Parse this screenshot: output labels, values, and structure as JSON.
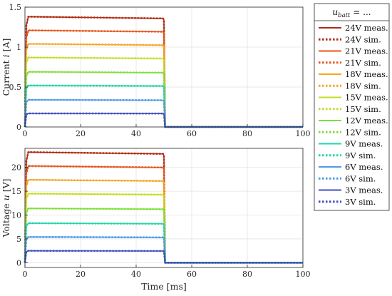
{
  "chart_data": [
    {
      "type": "line",
      "panel": "top",
      "ylabel": "Current i [A]",
      "xlabel": "",
      "xlim": [
        0,
        100
      ],
      "ylim": [
        0,
        1.5
      ],
      "xticks": [
        0,
        20,
        40,
        60,
        80,
        100
      ],
      "yticks": [
        0,
        0.5,
        1,
        1.5
      ],
      "grid": true,
      "pulse": {
        "start_ms": 0,
        "end_ms": 50
      },
      "series": [
        {
          "name": "24V meas.",
          "color": "#B22A12",
          "dash": false,
          "level": 1.38
        },
        {
          "name": "24V sim.",
          "color": "#B22A12",
          "dash": true,
          "level": 1.38
        },
        {
          "name": "21V meas.",
          "color": "#E8561B",
          "dash": false,
          "level": 1.21
        },
        {
          "name": "21V sim.",
          "color": "#E8561B",
          "dash": true,
          "level": 1.21
        },
        {
          "name": "18V meas.",
          "color": "#F5A623",
          "dash": false,
          "level": 1.04
        },
        {
          "name": "18V sim.",
          "color": "#F5A623",
          "dash": true,
          "level": 1.04
        },
        {
          "name": "15V meas.",
          "color": "#C6DC24",
          "dash": false,
          "level": 0.87
        },
        {
          "name": "15V sim.",
          "color": "#C6DC24",
          "dash": true,
          "level": 0.87
        },
        {
          "name": "12V meas.",
          "color": "#7EE03A",
          "dash": false,
          "level": 0.69
        },
        {
          "name": "12V sim.",
          "color": "#7EE03A",
          "dash": true,
          "level": 0.69
        },
        {
          "name": "9V meas.",
          "color": "#21D6A9",
          "dash": false,
          "level": 0.52
        },
        {
          "name": "9V sim.",
          "color": "#21D6A9",
          "dash": true,
          "level": 0.52
        },
        {
          "name": "6V meas.",
          "color": "#4C9BE8",
          "dash": false,
          "level": 0.34
        },
        {
          "name": "6V sim.",
          "color": "#4C9BE8",
          "dash": true,
          "level": 0.34
        },
        {
          "name": "3V meas.",
          "color": "#3E4FC2",
          "dash": false,
          "level": 0.17
        },
        {
          "name": "3V sim.",
          "color": "#3E4FC2",
          "dash": true,
          "level": 0.17
        }
      ]
    },
    {
      "type": "line",
      "panel": "bottom",
      "ylabel": "Voltage u [V]",
      "xlabel": "Time [ms]",
      "xlim": [
        0,
        100
      ],
      "ylim": [
        -1,
        24
      ],
      "xticks": [
        0,
        20,
        40,
        60,
        80,
        100
      ],
      "yticks": [
        0,
        5,
        10,
        15,
        20
      ],
      "grid": true,
      "pulse": {
        "start_ms": 0,
        "end_ms": 50
      },
      "series": [
        {
          "name": "24V meas.",
          "color": "#B22A12",
          "dash": false,
          "level": 23.2
        },
        {
          "name": "24V sim.",
          "color": "#B22A12",
          "dash": true,
          "level": 23.2
        },
        {
          "name": "21V meas.",
          "color": "#E8561B",
          "dash": false,
          "level": 20.3
        },
        {
          "name": "21V sim.",
          "color": "#E8561B",
          "dash": true,
          "level": 20.3
        },
        {
          "name": "18V meas.",
          "color": "#F5A623",
          "dash": false,
          "level": 17.4
        },
        {
          "name": "18V sim.",
          "color": "#F5A623",
          "dash": true,
          "level": 17.4
        },
        {
          "name": "15V meas.",
          "color": "#C6DC24",
          "dash": false,
          "level": 14.5
        },
        {
          "name": "15V sim.",
          "color": "#C6DC24",
          "dash": true,
          "level": 14.5
        },
        {
          "name": "12V meas.",
          "color": "#7EE03A",
          "dash": false,
          "level": 11.4
        },
        {
          "name": "12V sim.",
          "color": "#7EE03A",
          "dash": true,
          "level": 11.4
        },
        {
          "name": "9V meas.",
          "color": "#21D6A9",
          "dash": false,
          "level": 8.3
        },
        {
          "name": "9V sim.",
          "color": "#21D6A9",
          "dash": true,
          "level": 8.3
        },
        {
          "name": "6V meas.",
          "color": "#4C9BE8",
          "dash": false,
          "level": 5.4
        },
        {
          "name": "6V sim.",
          "color": "#4C9BE8",
          "dash": true,
          "level": 5.4
        },
        {
          "name": "3V meas.",
          "color": "#3E4FC2",
          "dash": false,
          "level": 2.5
        },
        {
          "name": "3V sim.",
          "color": "#3E4FC2",
          "dash": true,
          "level": 2.5
        }
      ]
    }
  ],
  "legend": {
    "title": "u_batt = ...",
    "title_main": "u",
    "title_sub": "batt",
    "title_rest": " = ...",
    "position": "right",
    "entries": [
      "24V meas.",
      "24V sim.",
      "21V meas.",
      "21V sim.",
      "18V meas.",
      "18V sim.",
      "15V meas.",
      "15V sim.",
      "12V meas.",
      "12V sim.",
      "9V meas.",
      "9V sim.",
      "6V meas.",
      "6V sim.",
      "3V meas.",
      "3V sim."
    ]
  }
}
